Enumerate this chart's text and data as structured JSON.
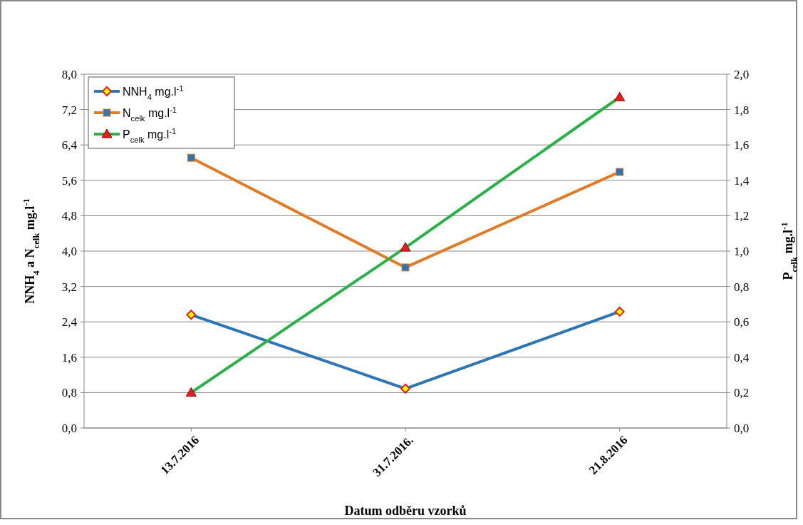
{
  "chart_data": {
    "type": "line",
    "xlabel": "Datum odběru vzorků",
    "ylabel": "NNH$_{4}$ a N$_{celk}$ mg.l$^{-1}$",
    "y2label": "P$_{celk}$ mg.l$^{-1}$",
    "categories": [
      "13.7.2016",
      "31.7.2016.",
      "21.8.2016"
    ],
    "series": [
      {
        "name": "NNH$_{4}$ mg.l$^{-1}$",
        "color": "#2e75b6",
        "marker": "diamond",
        "values": [
          2.56,
          0.89,
          2.63
        ]
      },
      {
        "name": "N$_{celk}$ mg.l$^{-1}$",
        "color": "#e07b28",
        "marker": "square",
        "values": [
          6.11,
          3.63,
          5.79
        ]
      },
      {
        "name": "P$_{celk}$ mg.l$^{-1}$",
        "color": "#2bb04a",
        "marker": "triangle",
        "axis": "y2",
        "values": [
          0.2,
          1.02,
          1.87
        ]
      }
    ],
    "ylim": [
      0,
      8
    ],
    "yticks": [
      {
        "value": 0,
        "label": "0,0"
      },
      {
        "value": 0.8,
        "label": "0,8"
      },
      {
        "value": 1.6,
        "label": "1,6"
      },
      {
        "value": 2.4,
        "label": "2,4"
      },
      {
        "value": 3.2,
        "label": "3,2"
      },
      {
        "value": 4,
        "label": "4,0"
      },
      {
        "value": 4.8,
        "label": "4,8"
      },
      {
        "value": 5.6,
        "label": "5,6"
      },
      {
        "value": 6.4,
        "label": "6,4"
      },
      {
        "value": 7.2,
        "label": "7,2"
      },
      {
        "value": 8,
        "label": "8,0"
      }
    ],
    "y2lim": [
      0,
      2
    ],
    "y2ticks": [
      {
        "value": 0,
        "label": "0,0"
      },
      {
        "value": 0.2,
        "label": "0,2"
      },
      {
        "value": 0.4,
        "label": "0,4"
      },
      {
        "value": 0.6,
        "label": "0,6"
      },
      {
        "value": 0.8,
        "label": "0,8"
      },
      {
        "value": 1,
        "label": "1,0"
      },
      {
        "value": 1.2,
        "label": "1,2"
      },
      {
        "value": 1.4,
        "label": "1,4"
      },
      {
        "value": 1.6,
        "label": "1,6"
      },
      {
        "value": 1.8,
        "label": "1,8"
      },
      {
        "value": 2,
        "label": "2,0"
      }
    ],
    "grid": "y",
    "legend": "top left",
    "line_style": "solid"
  }
}
